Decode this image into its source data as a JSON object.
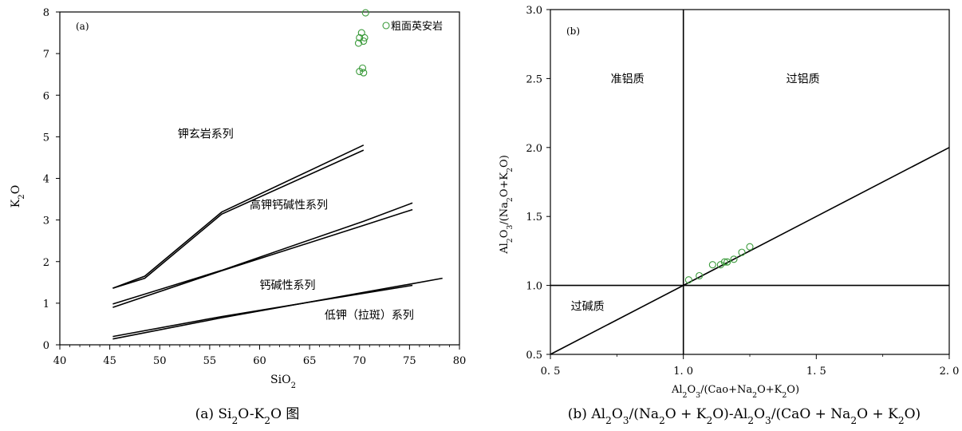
{
  "chart_data": [
    {
      "type": "line",
      "panel_label": "(a)",
      "caption": "(a) Si₂O-K₂O 图",
      "xlabel": "SiO₂",
      "ylabel": "K₂O",
      "xlim": [
        40,
        80
      ],
      "ylim": [
        0,
        8
      ],
      "xticks": [
        "40",
        "45",
        "50",
        "55",
        "60",
        "65",
        "70",
        "75",
        "80"
      ],
      "yticks": [
        "0",
        "1",
        "2",
        "3",
        "4",
        "5",
        "6",
        "7",
        "8"
      ],
      "grid": false,
      "series": [
        {
          "name": "",
          "points": [
            [
              45.3,
              1.36
            ],
            [
              48.5,
              1.65
            ],
            [
              56.2,
              3.19
            ],
            [
              70.4,
              4.8
            ]
          ]
        },
        {
          "name": "",
          "points": [
            [
              45.3,
              1.36
            ],
            [
              48.5,
              1.6
            ],
            [
              56.2,
              3.14
            ],
            [
              70.4,
              4.68
            ]
          ]
        },
        {
          "name": "",
          "points": [
            [
              45.3,
              0.98
            ],
            [
              56.2,
              1.79
            ],
            [
              70.4,
              2.97
            ],
            [
              75.3,
              3.41
            ]
          ]
        },
        {
          "name": "",
          "points": [
            [
              45.3,
              0.9
            ],
            [
              56.2,
              1.78
            ],
            [
              70.4,
              2.87
            ],
            [
              75.3,
              3.25
            ]
          ]
        },
        {
          "name": "",
          "points": [
            [
              45.3,
              0.2
            ],
            [
              56.2,
              0.68
            ],
            [
              75.3,
              1.43
            ]
          ]
        },
        {
          "name": "",
          "points": [
            [
              45.3,
              0.14
            ],
            [
              56.2,
              0.65
            ],
            [
              75.3,
              1.47
            ],
            [
              78.3,
              1.6
            ]
          ]
        }
      ],
      "region_labels": [
        {
          "text": "钾玄岩系列",
          "x": 51.8,
          "y": 4.98
        },
        {
          "text": "高钾钙碱性系列",
          "x": 59.0,
          "y": 3.27
        },
        {
          "text": "钙碱性系列",
          "x": 60.0,
          "y": 1.34
        },
        {
          "text": "低钾（拉斑）系列",
          "x": 66.5,
          "y": 0.62
        }
      ],
      "scatter": {
        "name": "粗面英安岩",
        "marker": "open-circle",
        "color": "#3a9a3a",
        "points": [
          [
            70.6,
            7.98
          ],
          [
            70.2,
            7.5
          ],
          [
            70.0,
            7.38
          ],
          [
            70.5,
            7.38
          ],
          [
            70.4,
            7.3
          ],
          [
            69.9,
            7.25
          ],
          [
            70.3,
            6.65
          ],
          [
            70.0,
            6.57
          ],
          [
            70.4,
            6.54
          ]
        ]
      }
    },
    {
      "type": "line",
      "panel_label": "(b)",
      "caption": "(b) Al₂O₃/(Na₂O + K₂O)-Al₂O₃/(CaO + Na₂O + K₂O)",
      "xlabel": "Al₂O₃/(Cao+Na₂O+K₂O)",
      "ylabel": "Al₂O₃/(Na₂O+K₂O)",
      "xlim": [
        0.5,
        2.0
      ],
      "ylim": [
        0.5,
        3.0
      ],
      "xticks": [
        "0. 5",
        "1. 0",
        "1. 5",
        "2. 0"
      ],
      "yticks": [
        "0.5",
        "1.0",
        "1.5",
        "2.0",
        "2.5",
        "3.0"
      ],
      "grid": false,
      "lines": [
        {
          "name": "",
          "points": [
            [
              1.0,
              0.5
            ],
            [
              1.0,
              3.0
            ]
          ]
        },
        {
          "name": "",
          "points": [
            [
              0.5,
              1.0
            ],
            [
              2.0,
              1.0
            ]
          ]
        },
        {
          "name": "",
          "points": [
            [
              0.5,
              0.5
            ],
            [
              2.0,
              2.0
            ]
          ]
        }
      ],
      "region_labels": [
        {
          "text": "准铝质",
          "x": 0.79,
          "y": 2.47
        },
        {
          "text": "过铝质",
          "x": 1.45,
          "y": 2.47
        },
        {
          "text": "过碱质",
          "x": 0.64,
          "y": 0.82
        }
      ],
      "scatter": {
        "name": "",
        "marker": "open-circle",
        "color": "#3a9a3a",
        "points": [
          [
            1.02,
            1.04
          ],
          [
            1.06,
            1.07
          ],
          [
            1.11,
            1.15
          ],
          [
            1.14,
            1.15
          ],
          [
            1.155,
            1.17
          ],
          [
            1.165,
            1.17
          ],
          [
            1.19,
            1.19
          ],
          [
            1.22,
            1.24
          ],
          [
            1.25,
            1.28
          ]
        ]
      }
    }
  ]
}
